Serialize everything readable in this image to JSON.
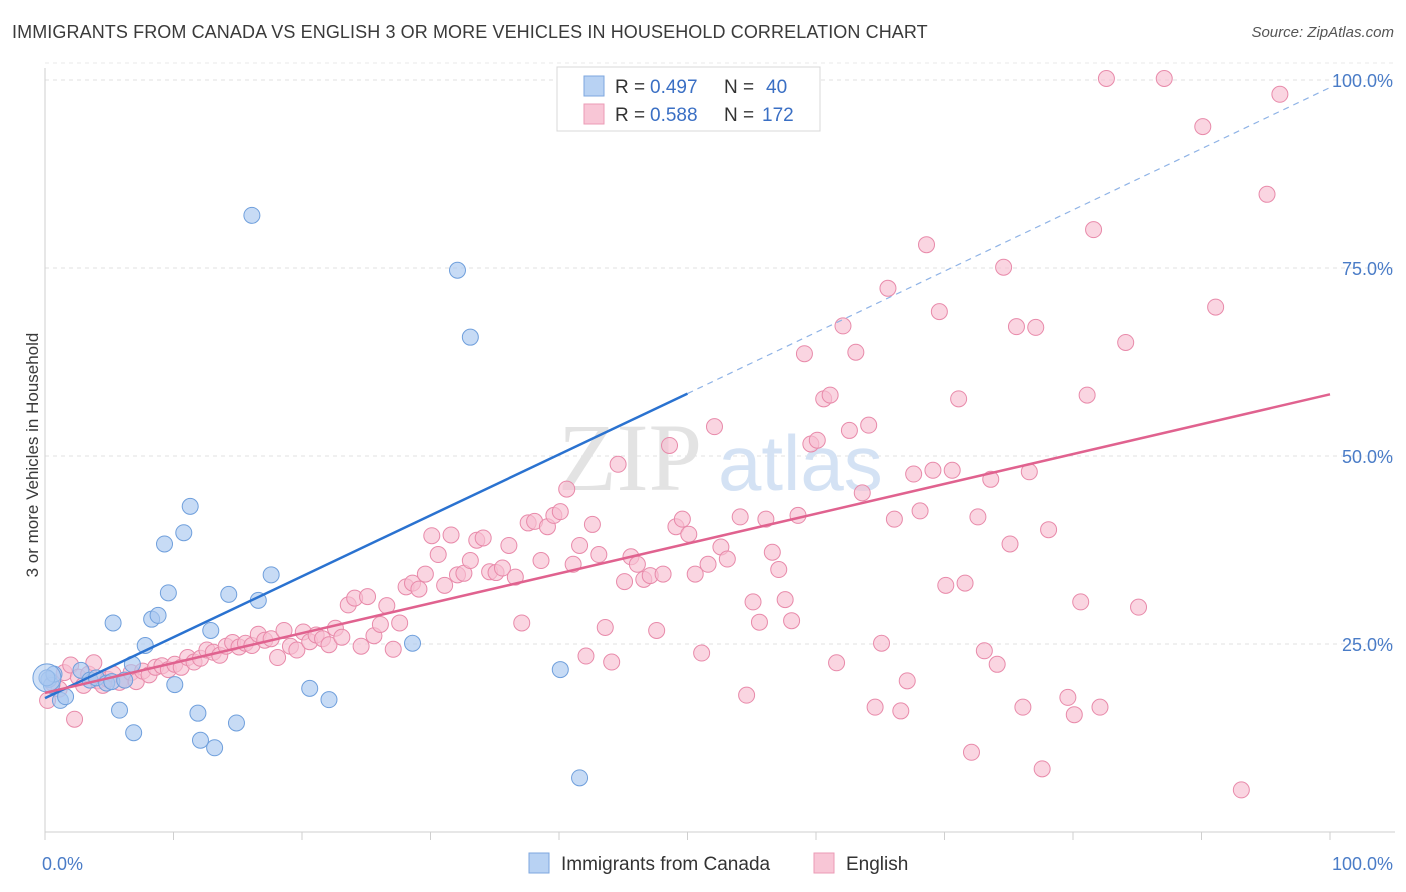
{
  "title": "IMMIGRANTS FROM CANADA VS ENGLISH 3 OR MORE VEHICLES IN HOUSEHOLD CORRELATION CHART",
  "source": "Source: ZipAtlas.com",
  "watermark": {
    "zip": "ZIP",
    "atlas": "atlas"
  },
  "chart_data": {
    "type": "scatter",
    "ylabel": "3 or more Vehicles in Household",
    "xlim": [
      0,
      100
    ],
    "ylim": [
      0,
      105
    ],
    "x_tick_labels": [
      "0.0%",
      "100.0%"
    ],
    "y_ticks": [
      25,
      50,
      75,
      100
    ],
    "y_tick_labels": [
      "25.0%",
      "50.0%",
      "75.0%",
      "100.0%"
    ],
    "grid": true,
    "legend_placement": "top-center",
    "legend": [
      {
        "r_label": "R =",
        "r_value": "0.497",
        "n_label": "N =",
        "n_value": "40"
      },
      {
        "r_label": "R =",
        "r_value": "0.588",
        "n_label": "N =",
        "n_value": "172"
      }
    ],
    "series": [
      {
        "name": "Immigrants from Canada",
        "color": "#a9c8f0",
        "stroke": "#6f9fdc",
        "line_color": "#2a72d0",
        "trend": {
          "x0": 0,
          "y0": 17.8,
          "x1": 50,
          "y1": 58.3,
          "dash_to_x": 100,
          "dash_to_y": 99
        },
        "points": [
          [
            0.3,
            20.3
          ],
          [
            0.5,
            19.5
          ],
          [
            0.7,
            21
          ],
          [
            1.2,
            17.5
          ],
          [
            1.6,
            18
          ],
          [
            2.8,
            21.5
          ],
          [
            3.5,
            20.2
          ],
          [
            4,
            20.5
          ],
          [
            4.8,
            19.8
          ],
          [
            5.2,
            20
          ],
          [
            5.3,
            27.8
          ],
          [
            5.8,
            16.2
          ],
          [
            6.2,
            20.2
          ],
          [
            6.8,
            22.3
          ],
          [
            6.9,
            13.2
          ],
          [
            7.8,
            24.8
          ],
          [
            8.3,
            28.3
          ],
          [
            8.8,
            28.8
          ],
          [
            9.3,
            38.3
          ],
          [
            9.6,
            31.8
          ],
          [
            10.1,
            19.6
          ],
          [
            10.8,
            39.8
          ],
          [
            11.3,
            43.3
          ],
          [
            11.9,
            15.8
          ],
          [
            12.1,
            12.2
          ],
          [
            12.9,
            26.8
          ],
          [
            13.2,
            11.2
          ],
          [
            14.3,
            31.6
          ],
          [
            14.9,
            14.5
          ],
          [
            16.1,
            82
          ],
          [
            16.6,
            30.8
          ],
          [
            17.6,
            34.2
          ],
          [
            20.6,
            19.1
          ],
          [
            22.1,
            17.6
          ],
          [
            28.6,
            25.1
          ],
          [
            32.1,
            74.7
          ],
          [
            33.1,
            65.8
          ],
          [
            40.1,
            21.6
          ],
          [
            41.6,
            7.2
          ],
          [
            0.15,
            20.5
          ]
        ]
      },
      {
        "name": "English",
        "color": "#f7bfd1",
        "stroke": "#e88aaa",
        "line_color": "#e0628f",
        "trend": {
          "x0": 0,
          "y0": 18.5,
          "x1": 100,
          "y1": 58.2
        },
        "points": [
          [
            0.2,
            17.5
          ],
          [
            0.6,
            19.8
          ],
          [
            1.1,
            19
          ],
          [
            1.5,
            21.2
          ],
          [
            2,
            22.2
          ],
          [
            2.3,
            15
          ],
          [
            2.6,
            20.6
          ],
          [
            3,
            19.5
          ],
          [
            3.4,
            21
          ],
          [
            3.8,
            22.5
          ],
          [
            4.1,
            20.1
          ],
          [
            4.5,
            19.5
          ],
          [
            4.9,
            20.3
          ],
          [
            5.3,
            21
          ],
          [
            5.8,
            19.9
          ],
          [
            6.2,
            20.2
          ],
          [
            6.7,
            21.2
          ],
          [
            7.1,
            20
          ],
          [
            7.6,
            21.4
          ],
          [
            8.1,
            20.9
          ],
          [
            8.6,
            21.9
          ],
          [
            9.1,
            22.1
          ],
          [
            9.6,
            21.6
          ],
          [
            10.1,
            22.3
          ],
          [
            10.6,
            21.9
          ],
          [
            11.1,
            23.2
          ],
          [
            11.6,
            22.6
          ],
          [
            12.1,
            23.1
          ],
          [
            12.6,
            24.2
          ],
          [
            13.1,
            23.9
          ],
          [
            13.6,
            23.5
          ],
          [
            14.1,
            24.7
          ],
          [
            14.6,
            25.2
          ],
          [
            15.1,
            24.6
          ],
          [
            15.6,
            25.1
          ],
          [
            16.1,
            24.8
          ],
          [
            16.6,
            26.3
          ],
          [
            17.1,
            25.5
          ],
          [
            17.6,
            25.7
          ],
          [
            18.1,
            23.2
          ],
          [
            18.6,
            26.8
          ],
          [
            19.1,
            24.7
          ],
          [
            19.6,
            24.2
          ],
          [
            20.1,
            26.6
          ],
          [
            20.6,
            25.3
          ],
          [
            21.1,
            26.2
          ],
          [
            21.6,
            25.7
          ],
          [
            22.1,
            24.9
          ],
          [
            22.6,
            27.1
          ],
          [
            23.1,
            25.9
          ],
          [
            23.6,
            30.2
          ],
          [
            24.1,
            31.1
          ],
          [
            24.6,
            24.7
          ],
          [
            25.1,
            31.3
          ],
          [
            25.6,
            26.1
          ],
          [
            26.1,
            27.6
          ],
          [
            26.6,
            30.1
          ],
          [
            27.1,
            24.3
          ],
          [
            27.6,
            27.8
          ],
          [
            28.1,
            32.6
          ],
          [
            28.6,
            33.1
          ],
          [
            29.1,
            32.3
          ],
          [
            29.6,
            34.3
          ],
          [
            30.1,
            39.4
          ],
          [
            30.6,
            36.9
          ],
          [
            31.1,
            32.8
          ],
          [
            31.6,
            39.5
          ],
          [
            32.1,
            34.2
          ],
          [
            32.6,
            34.4
          ],
          [
            33.1,
            36.1
          ],
          [
            33.6,
            38.8
          ],
          [
            34.1,
            39.1
          ],
          [
            34.6,
            34.6
          ],
          [
            35.1,
            34.5
          ],
          [
            35.6,
            35.1
          ],
          [
            36.1,
            38.1
          ],
          [
            36.6,
            33.9
          ],
          [
            37.1,
            27.8
          ],
          [
            37.6,
            41.1
          ],
          [
            38.1,
            41.3
          ],
          [
            38.6,
            36.1
          ],
          [
            39.1,
            40.6
          ],
          [
            39.6,
            42.1
          ],
          [
            40.1,
            42.6
          ],
          [
            40.6,
            45.6
          ],
          [
            41.1,
            35.6
          ],
          [
            41.6,
            38.1
          ],
          [
            42.1,
            23.4
          ],
          [
            42.6,
            40.9
          ],
          [
            43.1,
            36.9
          ],
          [
            43.6,
            27.2
          ],
          [
            44.1,
            22.6
          ],
          [
            44.6,
            48.9
          ],
          [
            45.1,
            33.3
          ],
          [
            45.6,
            36.6
          ],
          [
            46.1,
            35.6
          ],
          [
            46.6,
            33.6
          ],
          [
            47.1,
            34.1
          ],
          [
            47.6,
            26.8
          ],
          [
            48.1,
            34.3
          ],
          [
            48.6,
            51.4
          ],
          [
            49.1,
            40.6
          ],
          [
            49.6,
            41.6
          ],
          [
            50.1,
            39.6
          ],
          [
            50.6,
            34.3
          ],
          [
            51.1,
            23.8
          ],
          [
            51.6,
            35.6
          ],
          [
            52.1,
            53.9
          ],
          [
            52.6,
            37.9
          ],
          [
            53.1,
            36.3
          ],
          [
            54.1,
            41.9
          ],
          [
            54.6,
            18.2
          ],
          [
            55.1,
            30.6
          ],
          [
            55.6,
            27.9
          ],
          [
            56.1,
            41.6
          ],
          [
            56.6,
            37.2
          ],
          [
            57.1,
            34.9
          ],
          [
            57.6,
            30.9
          ],
          [
            58.1,
            28.1
          ],
          [
            58.6,
            42.1
          ],
          [
            59.1,
            63.6
          ],
          [
            59.6,
            51.6
          ],
          [
            60.1,
            52.1
          ],
          [
            60.6,
            57.6
          ],
          [
            61.1,
            58.1
          ],
          [
            61.6,
            22.5
          ],
          [
            62.1,
            67.3
          ],
          [
            62.6,
            53.4
          ],
          [
            63.1,
            63.8
          ],
          [
            63.6,
            45.1
          ],
          [
            64.1,
            54.1
          ],
          [
            64.6,
            16.6
          ],
          [
            65.1,
            25.1
          ],
          [
            65.6,
            72.3
          ],
          [
            66.1,
            41.6
          ],
          [
            66.6,
            16.1
          ],
          [
            67.1,
            20.1
          ],
          [
            67.6,
            47.6
          ],
          [
            68.1,
            42.7
          ],
          [
            68.6,
            78.1
          ],
          [
            69.1,
            48.1
          ],
          [
            69.6,
            69.2
          ],
          [
            70.1,
            32.8
          ],
          [
            70.6,
            48.1
          ],
          [
            71.1,
            57.6
          ],
          [
            71.6,
            33.1
          ],
          [
            72.1,
            10.6
          ],
          [
            72.6,
            41.9
          ],
          [
            73.1,
            24.1
          ],
          [
            73.6,
            46.9
          ],
          [
            74.1,
            22.3
          ],
          [
            74.6,
            75.1
          ],
          [
            75.1,
            38.3
          ],
          [
            75.6,
            67.2
          ],
          [
            76.1,
            16.6
          ],
          [
            76.6,
            47.9
          ],
          [
            77.1,
            67.1
          ],
          [
            77.6,
            8.4
          ],
          [
            78.1,
            40.2
          ],
          [
            79.6,
            17.9
          ],
          [
            80.1,
            15.6
          ],
          [
            80.6,
            30.6
          ],
          [
            81.1,
            58.1
          ],
          [
            81.6,
            80.1
          ],
          [
            82.1,
            16.6
          ],
          [
            82.6,
            100.2
          ],
          [
            84.1,
            65.1
          ],
          [
            85.1,
            29.9
          ],
          [
            87.1,
            100.2
          ],
          [
            90.1,
            93.8
          ],
          [
            91.1,
            69.8
          ],
          [
            93.1,
            5.6
          ],
          [
            95.1,
            84.8
          ],
          [
            96.1,
            98.1
          ]
        ]
      }
    ]
  }
}
